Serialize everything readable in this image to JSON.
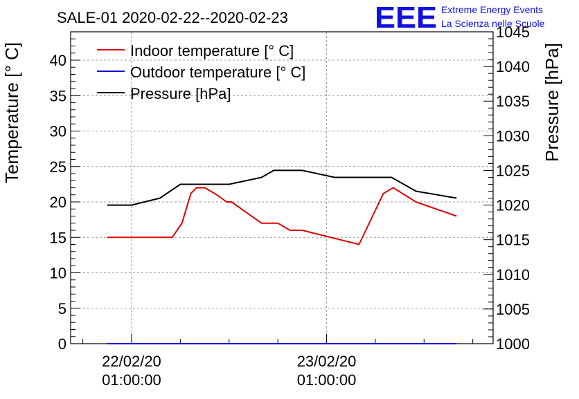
{
  "chart_data": {
    "type": "line",
    "title": "SALE-01 2020-02-22--2020-02-23",
    "ylabel_left": "Temperature [° C]",
    "ylabel_right": "Pressure [hPa]",
    "ylim_left": [
      0,
      44
    ],
    "ylim_right": [
      1000,
      1045
    ],
    "left_ticks": [
      0,
      5,
      10,
      15,
      20,
      25,
      30,
      35,
      40
    ],
    "right_ticks": [
      1000,
      1005,
      1010,
      1015,
      1020,
      1025,
      1030,
      1035,
      1040,
      1045
    ],
    "x_ticks": [
      {
        "t": 0,
        "date": "22/02/20",
        "time": "01:00:00"
      },
      {
        "t": 24,
        "date": "23/02/20",
        "time": "01:00:00"
      }
    ],
    "xlim": [
      -7.5,
      44.5
    ],
    "grid": true,
    "legend_position": "top-left",
    "series": [
      {
        "name": "Indoor temperature [° C]",
        "color": "#e00000",
        "axis": "left",
        "x": [
          -3,
          5,
          6.2,
          7.3,
          8,
          9,
          10.5,
          11.7,
          12.3,
          16,
          18,
          19.5,
          21,
          28,
          31,
          32.2,
          35,
          40
        ],
        "y": [
          15,
          15,
          17,
          21.2,
          22,
          22,
          21,
          20,
          20,
          17,
          17,
          16,
          16,
          14,
          21.2,
          22,
          20,
          18
        ]
      },
      {
        "name": "Outdoor temperature [° C]",
        "color": "#0000e0",
        "axis": "left",
        "x": [
          -3,
          40
        ],
        "y": [
          0,
          0
        ]
      },
      {
        "name": "Pressure [hPa]",
        "color": "#000000",
        "axis": "right",
        "x": [
          -3,
          0,
          3.5,
          6,
          12,
          16,
          17.5,
          21,
          25,
          29,
          32,
          35,
          40
        ],
        "y": [
          1020,
          1020,
          1021,
          1023,
          1023,
          1024,
          1025,
          1025,
          1024,
          1024,
          1024,
          1022,
          1021
        ]
      }
    ]
  },
  "logo": {
    "mark": "EEE",
    "line1": "Extreme Energy Events",
    "line2": "La Scienza nelle Scuole",
    "color": "#1010e0"
  }
}
